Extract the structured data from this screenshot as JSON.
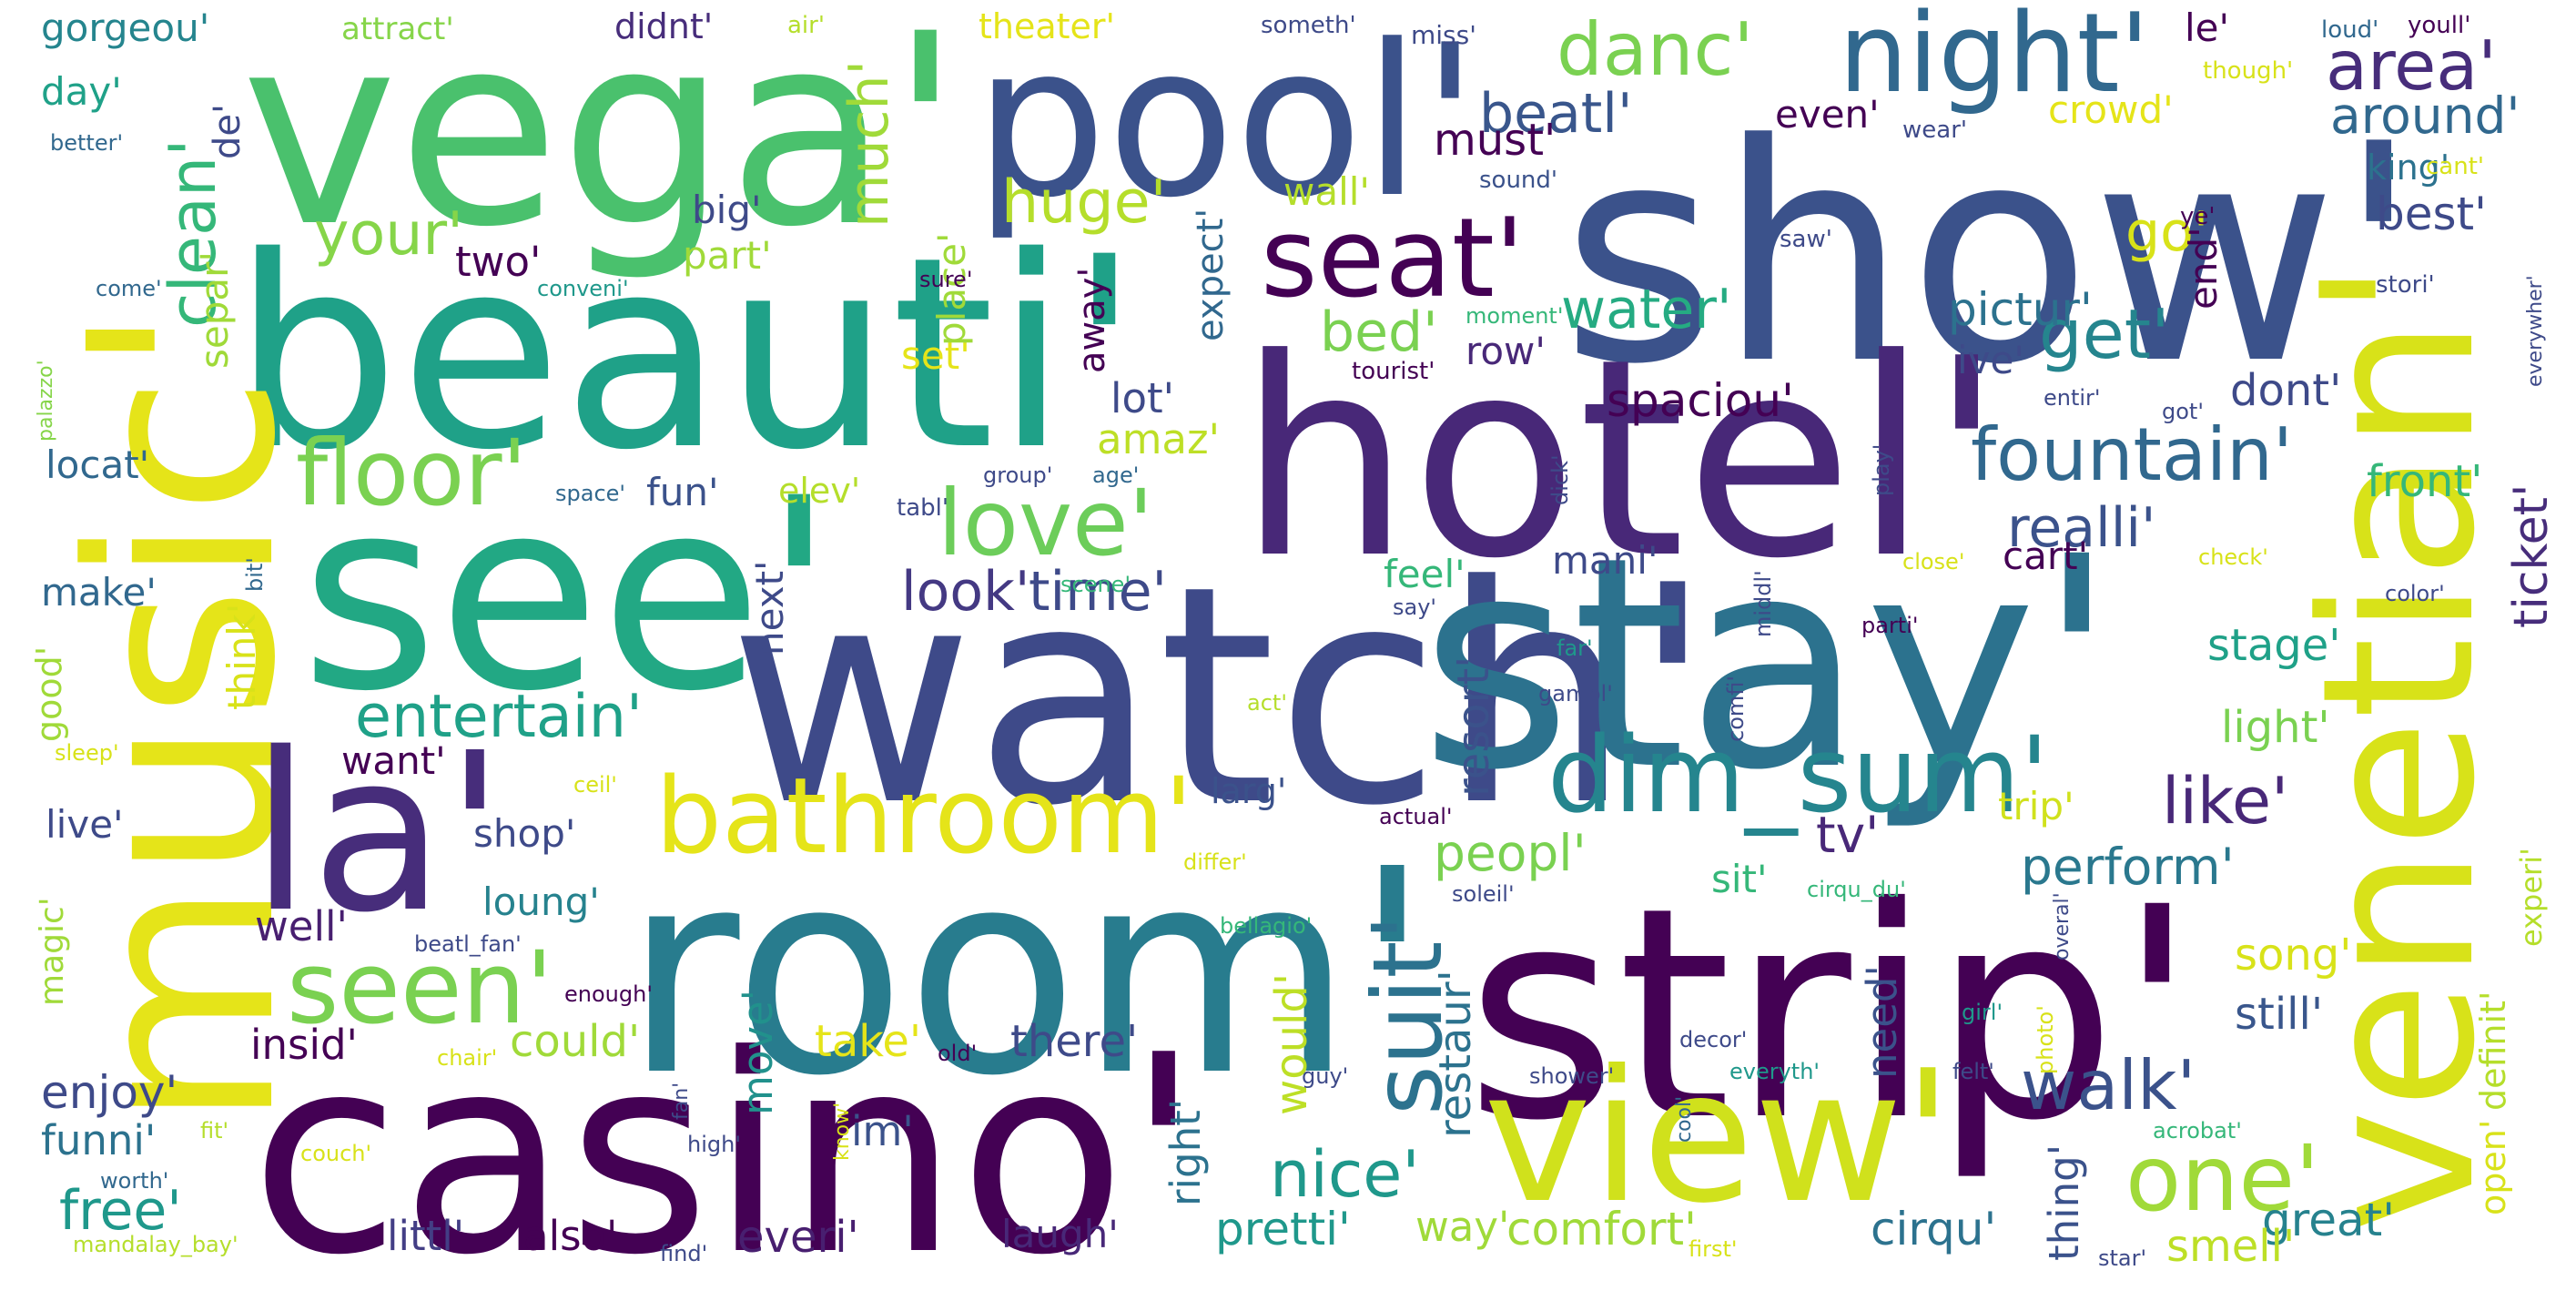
{
  "words": [
    {
      "text": "show'",
      "color": "#3b528b"
    },
    {
      "text": "hotel'",
      "color": "#482878"
    },
    {
      "text": "watch'",
      "color": "#3e4a89"
    },
    {
      "text": "stay'",
      "color": "#2c728e"
    },
    {
      "text": "room'",
      "color": "#287c8e"
    },
    {
      "text": "strip'",
      "color": "#440154"
    },
    {
      "text": "casino'",
      "color": "#440154"
    },
    {
      "text": "vega'",
      "color": "#4ac16d"
    },
    {
      "text": "beauti'",
      "color": "#1fa188"
    },
    {
      "text": "see'",
      "color": "#22a884"
    },
    {
      "text": "music'",
      "color": "#e5e419"
    },
    {
      "text": "venetian'",
      "color": "#d8e219"
    },
    {
      "text": "pool'",
      "color": "#3b528b"
    },
    {
      "text": "la'",
      "color": "#472d7b"
    },
    {
      "text": "view'",
      "color": "#d0e11c"
    },
    {
      "text": "night'",
      "color": "#31688e"
    },
    {
      "text": "seat'",
      "color": "#440154"
    },
    {
      "text": "bathroom'",
      "color": "#e5e419"
    },
    {
      "text": "dim_sum'",
      "color": "#25858e"
    },
    {
      "text": "seen'",
      "color": "#7ad151"
    },
    {
      "text": "floor'",
      "color": "#7ad151"
    },
    {
      "text": "love'",
      "color": "#6ccd5a"
    },
    {
      "text": "suit'",
      "color": "#2c728e"
    },
    {
      "text": "one'",
      "color": "#a0da39"
    },
    {
      "text": "fountain'",
      "color": "#31688e"
    },
    {
      "text": "walk'",
      "color": "#3b528b"
    },
    {
      "text": "danc'",
      "color": "#7ad151"
    },
    {
      "text": "area'",
      "color": "#472d7b"
    },
    {
      "text": "get'",
      "color": "#25858e"
    },
    {
      "text": "like'",
      "color": "#482878"
    },
    {
      "text": "entertain'",
      "color": "#1fa188"
    },
    {
      "text": "nice'",
      "color": "#1f988b"
    },
    {
      "text": "water'",
      "color": "#25ab82"
    },
    {
      "text": "huge'",
      "color": "#b5de2b"
    },
    {
      "text": "clean'",
      "color": "#35b779"
    },
    {
      "text": "your'",
      "color": "#86d549"
    },
    {
      "text": "much'",
      "color": "#a0da39"
    },
    {
      "text": "beatl'",
      "color": "#39568c"
    },
    {
      "text": "around'",
      "color": "#31688e"
    },
    {
      "text": "free'",
      "color": "#1f988b"
    },
    {
      "text": "enjoy'",
      "color": "#3e4a89"
    },
    {
      "text": "peopl'",
      "color": "#7ad151"
    },
    {
      "text": "perform'",
      "color": "#2a788e"
    },
    {
      "text": "time'",
      "color": "#3e4a89"
    },
    {
      "text": "look'",
      "color": "#443983"
    },
    {
      "text": "realli'",
      "color": "#3b528b"
    },
    {
      "text": "go'",
      "color": "#d8e219"
    },
    {
      "text": "best'",
      "color": "#3e4a89"
    },
    {
      "text": "bed'",
      "color": "#7ad151"
    },
    {
      "text": "spaciou'",
      "color": "#440154"
    },
    {
      "text": "pictur'",
      "color": "#2c728e"
    },
    {
      "text": "dont'",
      "color": "#3e4a89"
    },
    {
      "text": "front'",
      "color": "#35b779"
    },
    {
      "text": "ticket'",
      "color": "#472d7b"
    },
    {
      "text": "tv'",
      "color": "#482878"
    },
    {
      "text": "resort'",
      "color": "#3b528b"
    },
    {
      "text": "restaur'",
      "color": "#2c728e"
    },
    {
      "text": "comfort'",
      "color": "#a0da39"
    },
    {
      "text": "great'",
      "color": "#26828e"
    },
    {
      "text": "cirqu'",
      "color": "#2c728e"
    },
    {
      "text": "smell'",
      "color": "#bddf26"
    },
    {
      "text": "song'",
      "color": "#d8e219"
    },
    {
      "text": "still'",
      "color": "#39568c"
    },
    {
      "text": "stage'",
      "color": "#1fa188"
    },
    {
      "text": "light'",
      "color": "#7ad151"
    },
    {
      "text": "trip'",
      "color": "#d0e11c"
    },
    {
      "text": "pretti'",
      "color": "#1f988b"
    },
    {
      "text": "laugh'",
      "color": "#482878"
    },
    {
      "text": "everi'",
      "color": "#481f70"
    },
    {
      "text": "way'",
      "color": "#a0da39"
    },
    {
      "text": "take'",
      "color": "#e5e419"
    },
    {
      "text": "there'",
      "color": "#3e4a89"
    },
    {
      "text": "could'",
      "color": "#a0da39"
    },
    {
      "text": "would'",
      "color": "#bddf26"
    },
    {
      "text": "need'",
      "color": "#3b528b"
    },
    {
      "text": "thing'",
      "color": "#3b528b"
    },
    {
      "text": "right'",
      "color": "#2c728e"
    },
    {
      "text": "move'",
      "color": "#21918c"
    },
    {
      "text": "im'",
      "color": "#3b528b"
    },
    {
      "text": "littl'",
      "color": "#433e85"
    },
    {
      "text": "also'",
      "color": "#440154"
    },
    {
      "text": "funni'",
      "color": "#2c728e"
    },
    {
      "text": "insid'",
      "color": "#440154"
    },
    {
      "text": "well'",
      "color": "#481f70"
    },
    {
      "text": "loung'",
      "color": "#26828e"
    },
    {
      "text": "shop'",
      "color": "#3e4a89"
    },
    {
      "text": "live'",
      "color": "#3e4a89"
    },
    {
      "text": "want'",
      "color": "#440154"
    },
    {
      "text": "make'",
      "color": "#31688e"
    },
    {
      "text": "locat'",
      "color": "#31688e"
    },
    {
      "text": "day'",
      "color": "#1fa188"
    },
    {
      "text": "gorgeou'",
      "color": "#25858e"
    },
    {
      "text": "attract'",
      "color": "#86d549"
    },
    {
      "text": "didnt'",
      "color": "#472d7b"
    },
    {
      "text": "theater'",
      "color": "#e5e419"
    },
    {
      "text": "two'",
      "color": "#440154"
    },
    {
      "text": "part'",
      "color": "#a0da39"
    },
    {
      "text": "big'",
      "color": "#3e4a89"
    },
    {
      "text": "wall'",
      "color": "#b5de2b"
    },
    {
      "text": "must'",
      "color": "#440154"
    },
    {
      "text": "even'",
      "color": "#440154"
    },
    {
      "text": "crowd'",
      "color": "#e5e419"
    },
    {
      "text": "le'",
      "color": "#440154"
    },
    {
      "text": "king'",
      "color": "#2c728e"
    },
    {
      "text": "lot'",
      "color": "#3e4a89"
    },
    {
      "text": "amaz'",
      "color": "#bddf26"
    },
    {
      "text": "set'",
      "color": "#e5e419"
    },
    {
      "text": "elev'",
      "color": "#b5de2b"
    },
    {
      "text": "fun'",
      "color": "#3b528b"
    },
    {
      "text": "feel'",
      "color": "#35b779"
    },
    {
      "text": "mani'",
      "color": "#3e4a89"
    },
    {
      "text": "cart'",
      "color": "#440154"
    },
    {
      "text": "larg'",
      "color": "#3b528b"
    },
    {
      "text": "sit'",
      "color": "#35b779"
    },
    {
      "text": "ive'",
      "color": "#3e4a89"
    },
    {
      "text": "row'",
      "color": "#482878"
    },
    {
      "text": "end'",
      "color": "#440154"
    },
    {
      "text": "next'",
      "color": "#3e4a89"
    },
    {
      "text": "away'",
      "color": "#440154"
    },
    {
      "text": "expect'",
      "color": "#31688e"
    },
    {
      "text": "place'",
      "color": "#a0da39"
    },
    {
      "text": "separ'",
      "color": "#a0da39"
    },
    {
      "text": "de'",
      "color": "#3e4a89"
    },
    {
      "text": "think'",
      "color": "#d8e219"
    },
    {
      "text": "good'",
      "color": "#a0da39"
    },
    {
      "text": "magic'",
      "color": "#a0da39"
    },
    {
      "text": "definit'",
      "color": "#b5de2b"
    },
    {
      "text": "open'",
      "color": "#d8e219"
    },
    {
      "text": "experi'",
      "color": "#b5de2b"
    },
    {
      "text": "air'",
      "color": "#b5de2b"
    },
    {
      "text": "someth'",
      "color": "#3e4a89"
    },
    {
      "text": "miss'",
      "color": "#3e4a89"
    },
    {
      "text": "loud'",
      "color": "#31688e"
    },
    {
      "text": "youll'",
      "color": "#440154"
    },
    {
      "text": "though'",
      "color": "#d8e219"
    },
    {
      "text": "wear'",
      "color": "#3e4a89"
    },
    {
      "text": "sound'",
      "color": "#3b528b"
    },
    {
      "text": "cant'",
      "color": "#d8e219"
    },
    {
      "text": "ye'",
      "color": "#440154"
    },
    {
      "text": "saw'",
      "color": "#3e4a89"
    },
    {
      "text": "stori'",
      "color": "#3e4a89"
    },
    {
      "text": "everywher'",
      "color": "#3e4a89"
    },
    {
      "text": "moment'",
      "color": "#35b779"
    },
    {
      "text": "tourist'",
      "color": "#440154"
    },
    {
      "text": "entir'",
      "color": "#3e4a89"
    },
    {
      "text": "got'",
      "color": "#3e4a89"
    },
    {
      "text": "better'",
      "color": "#31688e"
    },
    {
      "text": "come'",
      "color": "#31688e"
    },
    {
      "text": "conveni'",
      "color": "#1f988b"
    },
    {
      "text": "sure'",
      "color": "#440154"
    },
    {
      "text": "palazzo'",
      "color": "#86d549"
    },
    {
      "text": "tabl'",
      "color": "#3e4a89"
    },
    {
      "text": "group'",
      "color": "#3e4a89"
    },
    {
      "text": "age'",
      "color": "#31688e"
    },
    {
      "text": "space'",
      "color": "#31688e"
    },
    {
      "text": "dick'",
      "color": "#3e4a89"
    },
    {
      "text": "play'",
      "color": "#3e4a89"
    },
    {
      "text": "bit'",
      "color": "#31688e"
    },
    {
      "text": "scene'",
      "color": "#35b779"
    },
    {
      "text": "close'",
      "color": "#d8e219"
    },
    {
      "text": "check'",
      "color": "#d8e219"
    },
    {
      "text": "color'",
      "color": "#3e4a89"
    },
    {
      "text": "say'",
      "color": "#3e4a89"
    },
    {
      "text": "middl'",
      "color": "#3e4a89"
    },
    {
      "text": "parti'",
      "color": "#440154"
    },
    {
      "text": "far'",
      "color": "#1f988b"
    },
    {
      "text": "act'",
      "color": "#b5de2b"
    },
    {
      "text": "gambl'",
      "color": "#3e4a89"
    },
    {
      "text": "comfi'",
      "color": "#3e4a89"
    },
    {
      "text": "sleep'",
      "color": "#d8e219"
    },
    {
      "text": "ceil'",
      "color": "#d8e219"
    },
    {
      "text": "actual'",
      "color": "#440154"
    },
    {
      "text": "differ'",
      "color": "#d8e219"
    },
    {
      "text": "soleil'",
      "color": "#3e4a89"
    },
    {
      "text": "cirqu_du'",
      "color": "#35b779"
    },
    {
      "text": "bellagio'",
      "color": "#35b779"
    },
    {
      "text": "beatl_fan'",
      "color": "#3e4a89"
    },
    {
      "text": "overal'",
      "color": "#3e4a89"
    },
    {
      "text": "enough'",
      "color": "#440154"
    },
    {
      "text": "chair'",
      "color": "#d8e219"
    },
    {
      "text": "old'",
      "color": "#440154"
    },
    {
      "text": "decor'",
      "color": "#3e4a89"
    },
    {
      "text": "girl'",
      "color": "#1f988b"
    },
    {
      "text": "photo'",
      "color": "#d8e219"
    },
    {
      "text": "guy'",
      "color": "#3e4a89"
    },
    {
      "text": "shower'",
      "color": "#3e4a89"
    },
    {
      "text": "fan'",
      "color": "#3e4a89"
    },
    {
      "text": "know'",
      "color": "#d8e219"
    },
    {
      "text": "cool'",
      "color": "#31688e"
    },
    {
      "text": "felt'",
      "color": "#3e4a89"
    },
    {
      "text": "everyth'",
      "color": "#1f988b"
    },
    {
      "text": "fit'",
      "color": "#b5de2b"
    },
    {
      "text": "couch'",
      "color": "#d8e219"
    },
    {
      "text": "worth'",
      "color": "#31688e"
    },
    {
      "text": "high'",
      "color": "#3e4a89"
    },
    {
      "text": "acrobat'",
      "color": "#35b779"
    },
    {
      "text": "mandalay_bay'",
      "color": "#b5de2b"
    },
    {
      "text": "find'",
      "color": "#3e4a89"
    },
    {
      "text": "first'",
      "color": "#d8e219"
    },
    {
      "text": "star'",
      "color": "#3e4a89"
    }
  ]
}
